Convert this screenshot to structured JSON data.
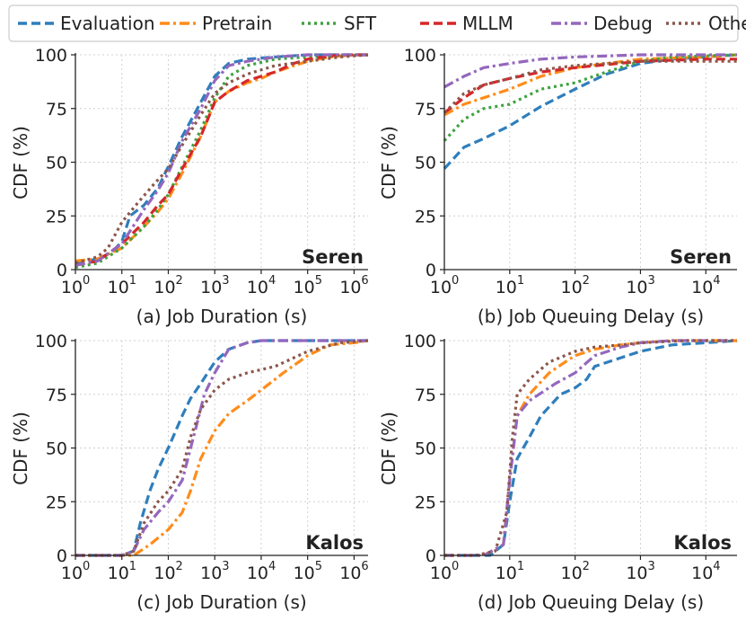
{
  "legend": {
    "entries": [
      {
        "name": "Evaluation",
        "color": "#2f7ebc",
        "dash": "dash"
      },
      {
        "name": "Pretrain",
        "color": "#ff8c1a",
        "dash": "dashdot"
      },
      {
        "name": "SFT",
        "color": "#3ea33e",
        "dash": "dot"
      },
      {
        "name": "MLLM",
        "color": "#d62728",
        "dash": "dash"
      },
      {
        "name": "Debug",
        "color": "#9467bd",
        "dash": "dashdot"
      },
      {
        "name": "Other",
        "color": "#8c564b",
        "dash": "dot"
      }
    ]
  },
  "chart_data": [
    {
      "type": "line",
      "caption": "(a) Job Duration (s)",
      "cluster": "Seren",
      "ylabel": "CDF (%)",
      "xscale": "log",
      "xlim": [
        1,
        2000000
      ],
      "ylim": [
        0,
        100
      ],
      "xticks": [
        {
          "v": 1,
          "label": "10",
          "exp": "0"
        },
        {
          "v": 10,
          "label": "10",
          "exp": "1"
        },
        {
          "v": 100,
          "label": "10",
          "exp": "2"
        },
        {
          "v": 1000,
          "label": "10",
          "exp": "3"
        },
        {
          "v": 10000,
          "label": "10",
          "exp": "4"
        },
        {
          "v": 100000,
          "label": "10",
          "exp": "5"
        },
        {
          "v": 1000000,
          "label": "10",
          "exp": "6"
        }
      ],
      "yticks": [
        0,
        25,
        50,
        75,
        100
      ],
      "series": [
        {
          "name": "Evaluation",
          "x": [
            1,
            3,
            6,
            10,
            15,
            30,
            60,
            100,
            200,
            400,
            1000,
            2000,
            5000,
            20000,
            100000,
            2000000
          ],
          "y": [
            3,
            5,
            8,
            13,
            25,
            30,
            38,
            48,
            62,
            74,
            90,
            96,
            98,
            99,
            100,
            100
          ]
        },
        {
          "name": "Pretrain",
          "x": [
            1,
            3,
            10,
            30,
            60,
            100,
            200,
            500,
            1000,
            2000,
            5000,
            10000,
            20000,
            100000,
            300000,
            1000000,
            2000000
          ],
          "y": [
            4,
            5,
            10,
            20,
            27,
            33,
            45,
            62,
            78,
            83,
            87,
            89,
            92,
            97,
            99,
            100,
            100
          ]
        },
        {
          "name": "SFT",
          "x": [
            1,
            3,
            10,
            30,
            60,
            100,
            200,
            500,
            1000,
            2000,
            5000,
            20000,
            100000,
            2000000
          ],
          "y": [
            1,
            3,
            10,
            20,
            28,
            35,
            48,
            65,
            80,
            90,
            95,
            98,
            99,
            100
          ]
        },
        {
          "name": "MLLM",
          "x": [
            1,
            3,
            10,
            30,
            60,
            100,
            200,
            500,
            1000,
            2000,
            5000,
            20000,
            50000,
            100000,
            500000,
            2000000
          ],
          "y": [
            2,
            4,
            12,
            22,
            30,
            35,
            47,
            62,
            78,
            83,
            88,
            92,
            96,
            98,
            100,
            100
          ]
        },
        {
          "name": "Debug",
          "x": [
            1,
            3,
            10,
            30,
            60,
            100,
            200,
            500,
            1000,
            2000,
            5000,
            20000,
            100000,
            2000000
          ],
          "y": [
            2,
            4,
            12,
            28,
            37,
            45,
            60,
            75,
            88,
            95,
            97,
            99,
            100,
            100
          ]
        },
        {
          "name": "Other",
          "x": [
            1,
            3,
            5,
            10,
            20,
            50,
            100,
            200,
            500,
            1000,
            2000,
            5000,
            20000,
            100000,
            500000,
            2000000
          ],
          "y": [
            3,
            6,
            10,
            22,
            30,
            40,
            47,
            58,
            72,
            82,
            87,
            91,
            95,
            97,
            99,
            100
          ]
        }
      ]
    },
    {
      "type": "line",
      "caption": "(b) Job Queuing Delay (s)",
      "cluster": "Seren",
      "ylabel": "CDF (%)",
      "xscale": "log",
      "xlim": [
        1,
        30000
      ],
      "ylim": [
        0,
        100
      ],
      "xticks": [
        {
          "v": 1,
          "label": "10",
          "exp": "0"
        },
        {
          "v": 10,
          "label": "10",
          "exp": "1"
        },
        {
          "v": 100,
          "label": "10",
          "exp": "2"
        },
        {
          "v": 1000,
          "label": "10",
          "exp": "3"
        },
        {
          "v": 10000,
          "label": "10",
          "exp": "4"
        }
      ],
      "yticks": [
        0,
        25,
        50,
        75,
        100
      ],
      "series": [
        {
          "name": "Evaluation",
          "x": [
            1,
            2,
            4,
            10,
            30,
            100,
            300,
            1000,
            3000,
            10000,
            30000
          ],
          "y": [
            47,
            57,
            61,
            67,
            76,
            84,
            91,
            96,
            98,
            99,
            100
          ]
        },
        {
          "name": "Pretrain",
          "x": [
            1,
            2,
            4,
            10,
            30,
            100,
            1000,
            10000,
            30000
          ],
          "y": [
            72,
            77,
            80,
            84,
            90,
            94,
            98,
            99,
            100
          ]
        },
        {
          "name": "SFT",
          "x": [
            1,
            2,
            4,
            10,
            30,
            100,
            300,
            1000,
            3000,
            30000
          ],
          "y": [
            60,
            70,
            75,
            77,
            84,
            87,
            92,
            97,
            99,
            100
          ]
        },
        {
          "name": "MLLM",
          "x": [
            1,
            2,
            4,
            10,
            30,
            100,
            1000,
            10000,
            30000
          ],
          "y": [
            73,
            80,
            86,
            89,
            92,
            94,
            97,
            98,
            98
          ]
        },
        {
          "name": "Debug",
          "x": [
            1,
            2,
            4,
            10,
            30,
            100,
            1000,
            30000
          ],
          "y": [
            85,
            90,
            94,
            96,
            98,
            99,
            100,
            100
          ]
        },
        {
          "name": "Other",
          "x": [
            1,
            2,
            4,
            10,
            30,
            100,
            300,
            1000,
            10000,
            30000
          ],
          "y": [
            73,
            82,
            86,
            89,
            93,
            95,
            96,
            97,
            97,
            97
          ]
        }
      ]
    },
    {
      "type": "line",
      "caption": "(c) Job Duration (s)",
      "cluster": "Kalos",
      "ylabel": "CDF (%)",
      "xscale": "log",
      "xlim": [
        1,
        2000000
      ],
      "ylim": [
        0,
        100
      ],
      "xticks": [
        {
          "v": 1,
          "label": "10",
          "exp": "0"
        },
        {
          "v": 10,
          "label": "10",
          "exp": "1"
        },
        {
          "v": 100,
          "label": "10",
          "exp": "2"
        },
        {
          "v": 1000,
          "label": "10",
          "exp": "3"
        },
        {
          "v": 10000,
          "label": "10",
          "exp": "4"
        },
        {
          "v": 100000,
          "label": "10",
          "exp": "5"
        },
        {
          "v": 1000000,
          "label": "10",
          "exp": "6"
        }
      ],
      "yticks": [
        0,
        25,
        50,
        75,
        100
      ],
      "series": [
        {
          "name": "Evaluation",
          "x": [
            1,
            10,
            18,
            25,
            40,
            60,
            100,
            200,
            300,
            500,
            1000,
            2000,
            5000,
            10000,
            2000000
          ],
          "y": [
            0,
            0,
            2,
            15,
            30,
            40,
            50,
            65,
            73,
            80,
            90,
            96,
            99,
            100,
            100
          ]
        },
        {
          "name": "Pretrain",
          "x": [
            1,
            10,
            18,
            40,
            100,
            200,
            300,
            500,
            1000,
            2000,
            5000,
            10000,
            30000,
            100000,
            300000,
            1000000,
            2000000
          ],
          "y": [
            0,
            0,
            0,
            5,
            12,
            20,
            30,
            45,
            58,
            66,
            72,
            77,
            85,
            93,
            98,
            99,
            100
          ]
        },
        {
          "name": "Debug",
          "x": [
            1,
            10,
            18,
            30,
            60,
            100,
            200,
            400,
            600,
            1000,
            2000,
            5000,
            10000,
            2000000
          ],
          "y": [
            0,
            0,
            2,
            12,
            20,
            25,
            35,
            60,
            75,
            85,
            96,
            99,
            100,
            100
          ]
        },
        {
          "name": "Other",
          "x": [
            1,
            10,
            18,
            30,
            60,
            100,
            200,
            300,
            500,
            1000,
            2000,
            5000,
            20000,
            100000,
            500000,
            2000000
          ],
          "y": [
            0,
            0,
            2,
            15,
            25,
            30,
            40,
            55,
            68,
            77,
            82,
            85,
            88,
            95,
            99,
            100
          ]
        }
      ]
    },
    {
      "type": "line",
      "caption": "(d) Job Queuing Delay (s)",
      "cluster": "Kalos",
      "ylabel": "CDF (%)",
      "xscale": "log",
      "xlim": [
        1,
        30000
      ],
      "ylim": [
        0,
        100
      ],
      "xticks": [
        {
          "v": 1,
          "label": "10",
          "exp": "0"
        },
        {
          "v": 10,
          "label": "10",
          "exp": "1"
        },
        {
          "v": 100,
          "label": "10",
          "exp": "2"
        },
        {
          "v": 1000,
          "label": "10",
          "exp": "3"
        },
        {
          "v": 10000,
          "label": "10",
          "exp": "4"
        }
      ],
      "yticks": [
        0,
        25,
        50,
        75,
        100
      ],
      "series": [
        {
          "name": "Evaluation",
          "x": [
            1,
            5,
            8,
            10,
            13,
            20,
            30,
            60,
            100,
            150,
            200,
            500,
            1000,
            3000,
            10000,
            30000
          ],
          "y": [
            0,
            0,
            5,
            25,
            45,
            55,
            65,
            75,
            78,
            82,
            88,
            92,
            95,
            98,
            99,
            100
          ]
        },
        {
          "name": "Pretrain",
          "x": [
            1,
            4,
            8,
            10,
            13,
            20,
            40,
            70,
            100,
            200,
            500,
            1000,
            3000,
            10000,
            30000
          ],
          "y": [
            0,
            0,
            5,
            35,
            65,
            75,
            85,
            90,
            93,
            96,
            98,
            99,
            100,
            100,
            100
          ]
        },
        {
          "name": "Debug",
          "x": [
            1,
            4,
            8,
            10,
            13,
            20,
            50,
            100,
            200,
            500,
            1000,
            3000,
            30000
          ],
          "y": [
            0,
            0,
            5,
            35,
            65,
            72,
            80,
            85,
            93,
            97,
            99,
            100,
            100
          ]
        },
        {
          "name": "Other",
          "x": [
            1,
            3,
            6,
            9,
            11,
            13,
            20,
            40,
            100,
            200,
            500,
            1000,
            5000,
            30000
          ],
          "y": [
            0,
            0,
            2,
            20,
            55,
            75,
            82,
            90,
            95,
            97,
            98,
            99,
            100,
            100
          ]
        }
      ]
    }
  ]
}
